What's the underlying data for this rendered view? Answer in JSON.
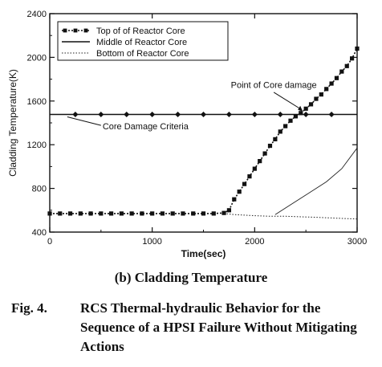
{
  "chart_data": {
    "type": "line",
    "xlabel": "Time(sec)",
    "ylabel": "Cladding Temperature(K)",
    "xlim": [
      0,
      3000
    ],
    "ylim": [
      400,
      2400
    ],
    "x_ticks": [
      0,
      1000,
      2000,
      3000
    ],
    "y_ticks": [
      400,
      800,
      1200,
      1600,
      2000,
      2400
    ],
    "grid": false,
    "legend_position": "top-left",
    "series": [
      {
        "name": "Top of of Reactor Core",
        "style": "dotted-with-square-markers",
        "points": [
          [
            0,
            570
          ],
          [
            100,
            570
          ],
          [
            200,
            570
          ],
          [
            300,
            570
          ],
          [
            400,
            570
          ],
          [
            500,
            570
          ],
          [
            600,
            570
          ],
          [
            700,
            570
          ],
          [
            800,
            570
          ],
          [
            900,
            570
          ],
          [
            1000,
            570
          ],
          [
            1100,
            570
          ],
          [
            1200,
            570
          ],
          [
            1300,
            570
          ],
          [
            1400,
            570
          ],
          [
            1500,
            570
          ],
          [
            1600,
            570
          ],
          [
            1700,
            575
          ],
          [
            1750,
            600
          ],
          [
            1800,
            700
          ],
          [
            1850,
            770
          ],
          [
            1900,
            840
          ],
          [
            1950,
            910
          ],
          [
            2000,
            980
          ],
          [
            2050,
            1050
          ],
          [
            2100,
            1120
          ],
          [
            2150,
            1190
          ],
          [
            2200,
            1250
          ],
          [
            2250,
            1320
          ],
          [
            2300,
            1370
          ],
          [
            2350,
            1420
          ],
          [
            2400,
            1460
          ],
          [
            2450,
            1490
          ],
          [
            2500,
            1530
          ],
          [
            2550,
            1570
          ],
          [
            2600,
            1620
          ],
          [
            2650,
            1660
          ],
          [
            2700,
            1710
          ],
          [
            2750,
            1760
          ],
          [
            2800,
            1810
          ],
          [
            2850,
            1870
          ],
          [
            2900,
            1920
          ],
          [
            2950,
            1990
          ],
          [
            3000,
            2080
          ]
        ]
      },
      {
        "name": "Middle of Reactor Core",
        "style": "solid",
        "points": [
          [
            0,
            1477
          ],
          [
            3000,
            1477
          ]
        ]
      },
      {
        "name": "Bottom of Reactor Core",
        "style": "dotted",
        "points": [
          [
            1700,
            570
          ],
          [
            1800,
            560
          ],
          [
            2000,
            550
          ],
          [
            2150,
            545
          ],
          [
            2300,
            545
          ],
          [
            2600,
            535
          ],
          [
            2800,
            527
          ],
          [
            3000,
            520
          ]
        ]
      },
      {
        "name": "",
        "style": "thin-solid",
        "points": [
          [
            2200,
            560
          ],
          [
            2350,
            650
          ],
          [
            2500,
            740
          ],
          [
            2700,
            860
          ],
          [
            2850,
            980
          ],
          [
            3000,
            1170
          ]
        ]
      }
    ],
    "criteria_markers": [
      250,
      500,
      750,
      1000,
      1250,
      1500,
      1750,
      2000,
      2250,
      2500,
      2750
    ],
    "annotations": [
      {
        "text": "Point of Core damage",
        "x": 2500,
        "y": 1490
      },
      {
        "text": "Core Damage Criteria",
        "x": 500,
        "y": 1477
      }
    ]
  },
  "caption": {
    "sub": "(b) Cladding Temperature",
    "label": "Fig. 4.",
    "text": "RCS Thermal-hydraulic Behavior for the Sequence of a HPSI Failure Without Mitigating Actions"
  }
}
